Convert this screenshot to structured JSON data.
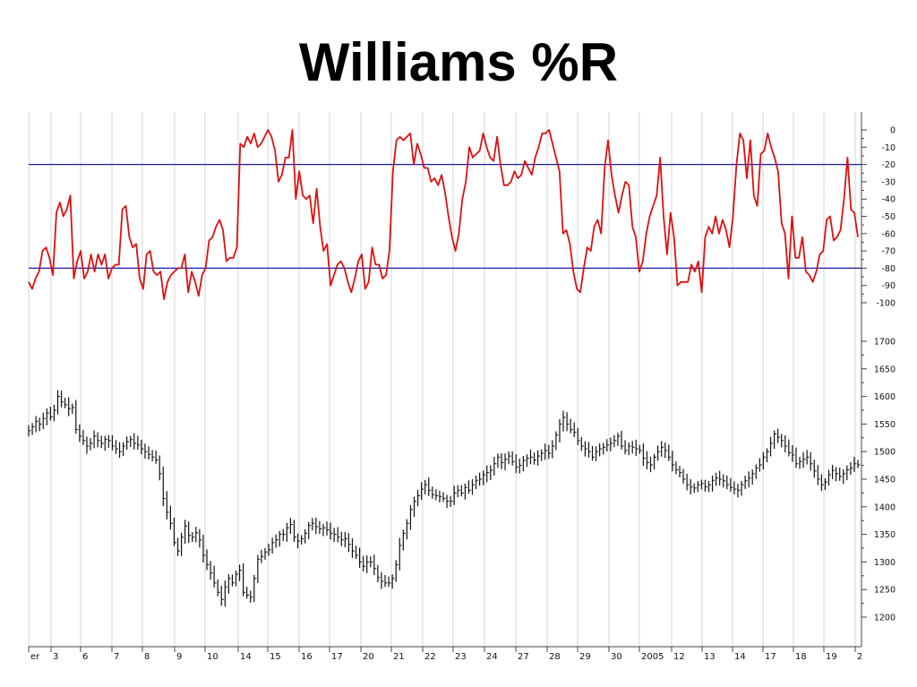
{
  "title": "Williams %R",
  "chart_data": [
    {
      "type": "line",
      "name": "williams-r-panel",
      "series_color": "#dd1111",
      "reference_color": "#1a1aaa",
      "reference_lines": [
        -20,
        -80
      ],
      "ylim": [
        -100,
        0
      ],
      "yticks": [
        "0",
        "-10",
        "-20",
        "-30",
        "-40",
        "-50",
        "-60",
        "-70",
        "-80",
        "-90",
        "-100"
      ],
      "values": [
        -88,
        -92,
        -86,
        -82,
        -70,
        -68,
        -74,
        -84,
        -48,
        -42,
        -50,
        -46,
        -38,
        -86,
        -76,
        -70,
        -86,
        -82,
        -72,
        -82,
        -72,
        -78,
        -72,
        -86,
        -80,
        -78,
        -78,
        -46,
        -44,
        -62,
        -68,
        -66,
        -86,
        -92,
        -72,
        -70,
        -82,
        -84,
        -82,
        -98,
        -88,
        -84,
        -82,
        -80,
        -80,
        -72,
        -94,
        -82,
        -88,
        -96,
        -84,
        -80,
        -64,
        -62,
        -56,
        -52,
        -58,
        -76,
        -74,
        -74,
        -68,
        -8,
        -10,
        -4,
        -8,
        -2,
        -10,
        -8,
        -4,
        0,
        -4,
        -12,
        -30,
        -26,
        -16,
        -16,
        0,
        -40,
        -24,
        -38,
        -40,
        -38,
        -54,
        -34,
        -56,
        -70,
        -66,
        -90,
        -84,
        -78,
        -76,
        -80,
        -88,
        -94,
        -86,
        -76,
        -72,
        -92,
        -88,
        -68,
        -78,
        -78,
        -86,
        -84,
        -70,
        -24,
        -6,
        -4,
        -6,
        -4,
        -2,
        -20,
        -8,
        -14,
        -22,
        -22,
        -30,
        -28,
        -32,
        -26,
        -36,
        -50,
        -62,
        -70,
        -60,
        -40,
        -30,
        -10,
        -16,
        -14,
        -12,
        -2,
        -10,
        -16,
        -18,
        -4,
        -20,
        -32,
        -32,
        -30,
        -24,
        -28,
        -26,
        -18,
        -22,
        -26,
        -16,
        -10,
        -2,
        -2,
        0,
        -8,
        -16,
        -24,
        -60,
        -58,
        -66,
        -82,
        -92,
        -94,
        -80,
        -68,
        -70,
        -56,
        -52,
        -60,
        -22,
        -6,
        -26,
        -38,
        -48,
        -38,
        -30,
        -32,
        -56,
        -62,
        -82,
        -76,
        -60,
        -50,
        -44,
        -38,
        -16,
        -50,
        -72,
        -48,
        -62,
        -90,
        -88,
        -88,
        -88,
        -78,
        -82,
        -76,
        -94,
        -62,
        -56,
        -60,
        -50,
        -60,
        -52,
        -58,
        -68,
        -50,
        -20,
        -2,
        -6,
        -28,
        -6,
        -38,
        -44,
        -14,
        -12,
        -2,
        -10,
        -16,
        -24,
        -54,
        -60,
        -86,
        -50,
        -74,
        -74,
        -62,
        -82,
        -84,
        -88,
        -82,
        -72,
        -70,
        -52,
        -50,
        -64,
        -62,
        -58,
        -40,
        -16,
        -46,
        -48,
        -62
      ]
    },
    {
      "type": "ohlc",
      "name": "price-panel",
      "bar_color": "#111111",
      "ylim": [
        1150,
        1700
      ],
      "yticks": [
        "1700",
        "1650",
        "1600",
        "1550",
        "1500",
        "1450",
        "1400",
        "1350",
        "1300",
        "1250",
        "1200"
      ],
      "values": [
        1538,
        1545,
        1555,
        1550,
        1560,
        1570,
        1563,
        1575,
        1600,
        1590,
        1585,
        1578,
        1580,
        1540,
        1528,
        1520,
        1510,
        1515,
        1528,
        1520,
        1515,
        1522,
        1520,
        1510,
        1505,
        1500,
        1510,
        1518,
        1522,
        1515,
        1512,
        1505,
        1500,
        1495,
        1490,
        1485,
        1460,
        1415,
        1390,
        1370,
        1335,
        1320,
        1345,
        1365,
        1348,
        1345,
        1353,
        1340,
        1312,
        1295,
        1280,
        1262,
        1245,
        1232,
        1255,
        1270,
        1262,
        1278,
        1285,
        1245,
        1240,
        1236,
        1270,
        1305,
        1310,
        1318,
        1322,
        1335,
        1340,
        1350,
        1350,
        1362,
        1368,
        1345,
        1338,
        1342,
        1352,
        1366,
        1370,
        1364,
        1360,
        1362,
        1358,
        1352,
        1350,
        1345,
        1340,
        1342,
        1332,
        1320,
        1312,
        1300,
        1292,
        1300,
        1300,
        1288,
        1272,
        1265,
        1262,
        1262,
        1270,
        1295,
        1330,
        1352,
        1370,
        1395,
        1410,
        1420,
        1432,
        1440,
        1430,
        1422,
        1420,
        1418,
        1415,
        1410,
        1410,
        1425,
        1430,
        1425,
        1435,
        1430,
        1440,
        1448,
        1450,
        1458,
        1462,
        1466,
        1478,
        1490,
        1480,
        1486,
        1492,
        1482,
        1472,
        1475,
        1484,
        1488,
        1490,
        1485,
        1492,
        1497,
        1502,
        1497,
        1510,
        1530,
        1550,
        1562,
        1550,
        1540,
        1535,
        1520,
        1510,
        1505,
        1500,
        1490,
        1500,
        1505,
        1508,
        1512,
        1515,
        1520,
        1528,
        1510,
        1502,
        1510,
        1508,
        1505,
        1502,
        1488,
        1480,
        1476,
        1490,
        1500,
        1508,
        1502,
        1490,
        1476,
        1467,
        1462,
        1450,
        1440,
        1436,
        1434,
        1440,
        1442,
        1436,
        1440,
        1448,
        1452,
        1450,
        1447,
        1440,
        1435,
        1432,
        1430,
        1440,
        1447,
        1452,
        1460,
        1470,
        1476,
        1490,
        1500,
        1515,
        1532,
        1526,
        1520,
        1510,
        1498,
        1494,
        1478,
        1482,
        1486,
        1490,
        1478,
        1465,
        1450,
        1440,
        1445,
        1458,
        1466,
        1460,
        1455,
        1460,
        1467,
        1470,
        1478,
        1476
      ]
    }
  ],
  "x_axis": {
    "labels": [
      "er",
      "3",
      "6",
      "7",
      "8",
      "9",
      "10",
      "14",
      "15",
      "16",
      "17",
      "20",
      "21",
      "22",
      "23",
      "24",
      "27",
      "28",
      "29",
      "30",
      "2005",
      "12",
      "13",
      "14",
      "17",
      "18",
      "19",
      "2"
    ]
  }
}
